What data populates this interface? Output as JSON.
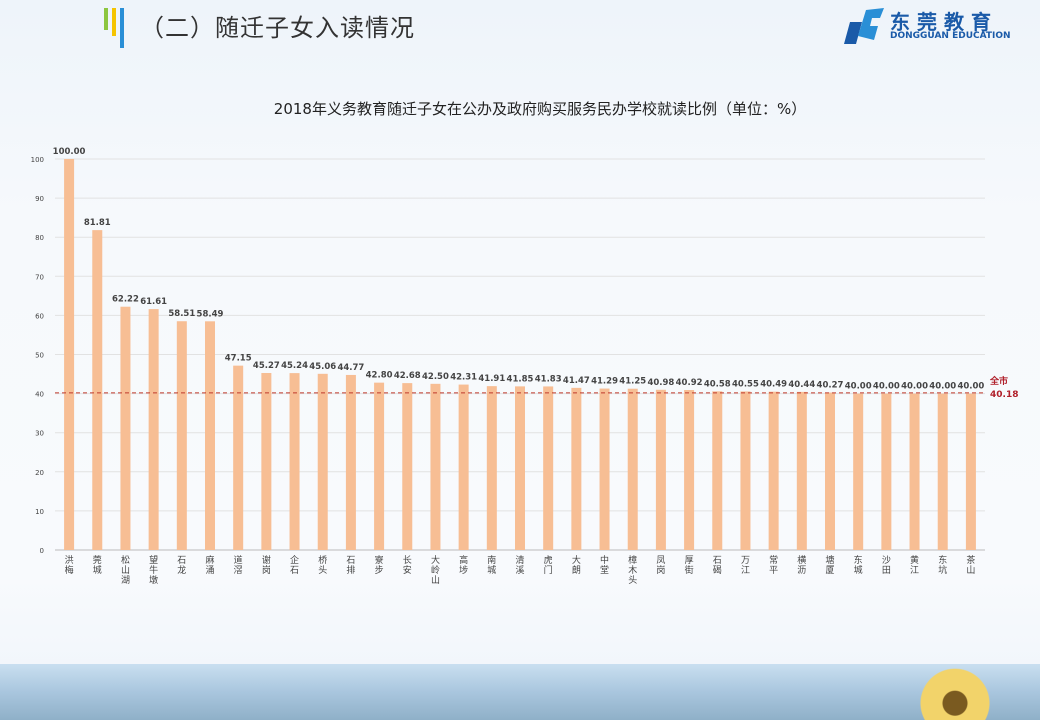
{
  "header": {
    "title": "（二）随迁子女入读情况"
  },
  "logo": {
    "cn": "东莞教育",
    "en": "DONGGUAN EDUCATION"
  },
  "colors": {
    "bar": "#f7be94",
    "reference_line": "#c0392b",
    "reference_label": "#b0202a",
    "accent_green": "#8cc63f",
    "accent_yellow": "#f5c400",
    "accent_blue": "#2a8fd6"
  },
  "chart_data": {
    "type": "bar",
    "title": "2018年义务教育随迁子女在公办及政府购买服务民办学校就读比例（单位：%）",
    "categories": [
      "洪梅",
      "莞城",
      "松山湖",
      "望牛墩",
      "石龙",
      "麻涌",
      "道滘",
      "谢岗",
      "企石",
      "桥头",
      "石排",
      "寮步",
      "长安",
      "大岭山",
      "高埗",
      "南城",
      "清溪",
      "虎门",
      "大朗",
      "中堂",
      "樟木头",
      "凤岗",
      "厚街",
      "石碣",
      "万江",
      "常平",
      "横沥",
      "塘厦",
      "东城",
      "沙田",
      "黄江",
      "东坑",
      "茶山"
    ],
    "values": [
      100.0,
      81.81,
      62.22,
      61.61,
      58.51,
      58.49,
      47.15,
      45.27,
      45.24,
      45.06,
      44.77,
      42.8,
      42.68,
      42.5,
      42.31,
      41.91,
      41.85,
      41.83,
      41.47,
      41.29,
      41.25,
      40.98,
      40.92,
      40.58,
      40.55,
      40.49,
      40.44,
      40.27,
      40.0,
      40.0,
      40.0,
      40.0,
      40.0
    ],
    "data_labels": [
      "100.00",
      "81.81",
      "62.22",
      "61.61",
      "58.51",
      "58.49",
      "47.15",
      "45.27",
      "45.24",
      "45.06",
      "44.77",
      "42.80",
      "42.68",
      "42.50",
      "42.31",
      "41.91",
      "41.85",
      "41.83",
      "41.47",
      "41.29",
      "41.25",
      "40.98",
      "40.92",
      "40.58",
      "40.55",
      "40.49",
      "40.44",
      "40.27",
      "40.00",
      "40.00",
      "40.00",
      "40.00",
      "40.00"
    ],
    "ylim": [
      0,
      100
    ],
    "yticks": [
      "0",
      "10",
      "20",
      "30",
      "40",
      "50",
      "60",
      "70",
      "80",
      "90",
      "100"
    ],
    "grid": true,
    "reference_line": {
      "label": "全市",
      "value": 40.18,
      "value_label": "40.18",
      "style": "dashed"
    },
    "xlabel": "",
    "ylabel": ""
  }
}
